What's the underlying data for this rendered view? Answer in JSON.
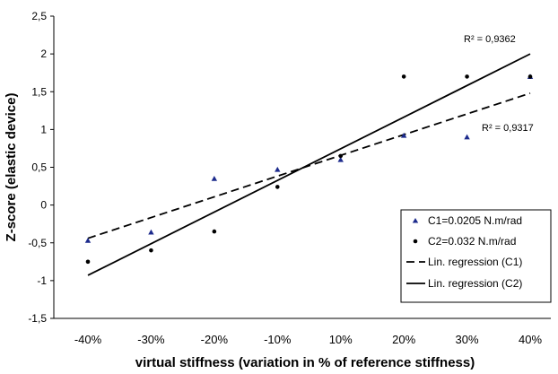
{
  "chart_data": {
    "type": "scatter",
    "xlabel": "virtual stiffness (variation in % of reference stiffness)",
    "ylabel": "Z-score (elastic device)",
    "categories": [
      "-40%",
      "-30%",
      "-20%",
      "-10%",
      "10%",
      "20%",
      "30%",
      "40%"
    ],
    "ylim": [
      -1.5,
      2.5
    ],
    "yticks": [
      -1.5,
      -1,
      -0.5,
      0,
      0.5,
      1,
      1.5,
      2,
      2.5
    ],
    "ytick_labels": [
      "-1,5",
      "-1",
      "-0,5",
      "0",
      "0,5",
      "1",
      "1,5",
      "2",
      "2,5"
    ],
    "grid": false,
    "legend_position": "bottom-right",
    "series": [
      {
        "name": "C1=0.0205 N.m/rad",
        "marker": "triangle",
        "color": "#1c2a8c",
        "values": [
          -0.47,
          -0.36,
          0.35,
          0.47,
          0.6,
          0.92,
          0.9,
          1.7
        ]
      },
      {
        "name": "C2=0.032 N.m/rad",
        "marker": "circle",
        "color": "#000000",
        "values": [
          -0.75,
          -0.6,
          -0.35,
          0.24,
          0.65,
          1.7,
          1.7,
          1.7
        ]
      }
    ],
    "regressions": [
      {
        "name": "Lin. regression (C1)",
        "style": "dashed",
        "of": "C1",
        "start": -0.44,
        "end": 1.48,
        "r2_label": "R² = 0,9317"
      },
      {
        "name": "Lin. regression (C2)",
        "style": "solid",
        "of": "C2",
        "start": -0.93,
        "end": 2.0,
        "r2_label": "R² = 0,9362"
      }
    ]
  }
}
